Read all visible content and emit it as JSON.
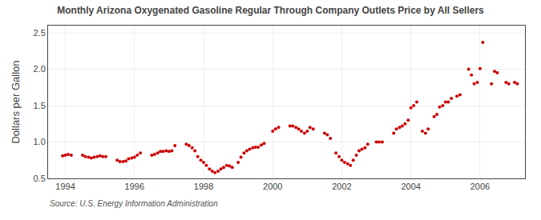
{
  "chart_data": {
    "type": "scatter",
    "title": "Monthly Arizona Oxygenated Gasoline Regular Through Company Outlets Price by All Sellers",
    "ylabel": "Dollars per Gallon",
    "annotations": [
      "Source: U.S. Energy Information Administration"
    ],
    "color": "#cc0000",
    "grid": true,
    "xlim": [
      1993.5,
      2007.3
    ],
    "xticks": [
      1994,
      1996,
      1998,
      2000,
      2002,
      2004,
      2006
    ],
    "ylim": [
      0.5,
      2.6
    ],
    "yticks": [
      0.5,
      {
        "value": 1.0,
        "label": "1.0"
      },
      1.5,
      {
        "value": 2.0,
        "label": "2.0"
      },
      2.5
    ],
    "x": [
      1993.92,
      1994.0,
      1994.08,
      1994.17,
      1994.5,
      1994.58,
      1994.67,
      1994.75,
      1994.83,
      1994.92,
      1995.0,
      1995.08,
      1995.17,
      1995.5,
      1995.58,
      1995.67,
      1995.75,
      1995.83,
      1995.92,
      1996.0,
      1996.08,
      1996.17,
      1996.5,
      1996.58,
      1996.67,
      1996.75,
      1996.83,
      1996.92,
      1997.0,
      1997.08,
      1997.17,
      1997.5,
      1997.58,
      1997.67,
      1997.75,
      1997.83,
      1997.92,
      1998.0,
      1998.08,
      1998.17,
      1998.25,
      1998.33,
      1998.42,
      1998.5,
      1998.58,
      1998.67,
      1998.75,
      1998.83,
      1999.0,
      1999.08,
      1999.17,
      1999.25,
      1999.33,
      1999.42,
      1999.5,
      1999.58,
      1999.67,
      1999.75,
      2000.0,
      2000.08,
      2000.17,
      2000.5,
      2000.58,
      2000.67,
      2000.75,
      2000.83,
      2000.92,
      2001.0,
      2001.08,
      2001.17,
      2001.5,
      2001.58,
      2001.67,
      2001.83,
      2001.92,
      2002.0,
      2002.08,
      2002.17,
      2002.25,
      2002.33,
      2002.42,
      2002.5,
      2002.58,
      2002.67,
      2002.75,
      2003.0,
      2003.08,
      2003.17,
      2003.5,
      2003.58,
      2003.67,
      2003.75,
      2003.83,
      2003.92,
      2004.0,
      2004.08,
      2004.17,
      2004.33,
      2004.42,
      2004.5,
      2004.67,
      2004.75,
      2004.83,
      2004.92,
      2005.0,
      2005.08,
      2005.17,
      2005.33,
      2005.42,
      2005.67,
      2005.75,
      2005.83,
      2005.92,
      2006.0,
      2006.08,
      2006.33,
      2006.42,
      2006.5,
      2006.75,
      2006.83,
      2007.0,
      2007.08
    ],
    "values": [
      0.81,
      0.82,
      0.83,
      0.82,
      0.82,
      0.8,
      0.79,
      0.78,
      0.79,
      0.8,
      0.81,
      0.8,
      0.8,
      0.75,
      0.73,
      0.73,
      0.74,
      0.77,
      0.78,
      0.79,
      0.82,
      0.85,
      0.82,
      0.83,
      0.85,
      0.87,
      0.87,
      0.88,
      0.87,
      0.88,
      0.95,
      0.97,
      0.95,
      0.92,
      0.88,
      0.8,
      0.75,
      0.72,
      0.68,
      0.63,
      0.6,
      0.58,
      0.6,
      0.63,
      0.65,
      0.68,
      0.67,
      0.65,
      0.72,
      0.79,
      0.85,
      0.88,
      0.9,
      0.92,
      0.93,
      0.93,
      0.96,
      0.98,
      1.15,
      1.18,
      1.2,
      1.22,
      1.22,
      1.2,
      1.18,
      1.15,
      1.12,
      1.15,
      1.2,
      1.18,
      1.12,
      1.1,
      1.05,
      0.85,
      0.8,
      0.75,
      0.72,
      0.7,
      0.68,
      0.75,
      0.82,
      0.88,
      0.9,
      0.92,
      0.97,
      1.0,
      1.0,
      1.0,
      1.12,
      1.18,
      1.2,
      1.22,
      1.25,
      1.3,
      1.47,
      1.5,
      1.55,
      1.15,
      1.12,
      1.18,
      1.35,
      1.38,
      1.48,
      1.5,
      1.55,
      1.55,
      1.6,
      1.63,
      1.65,
      2.0,
      1.92,
      1.8,
      1.82,
      2.01,
      2.37,
      1.8,
      1.97,
      1.95,
      1.82,
      1.8,
      1.82,
      1.8
    ]
  }
}
